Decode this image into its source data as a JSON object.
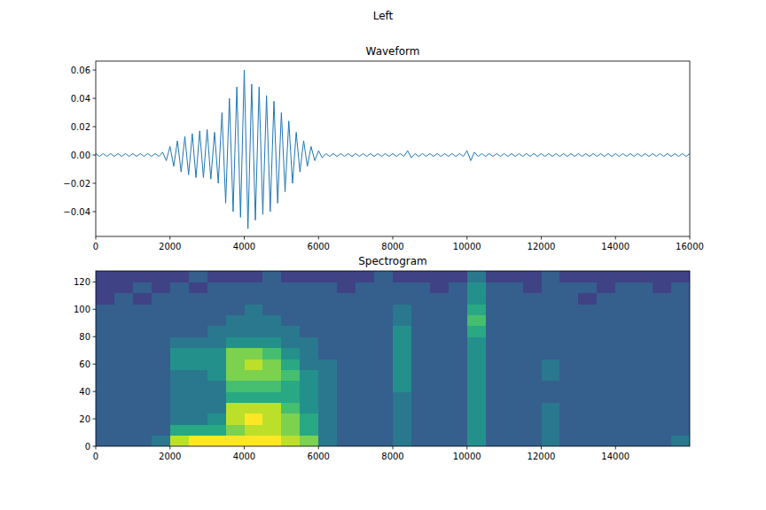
{
  "suptitle": "Left",
  "chart_data": [
    {
      "type": "line",
      "title": "Waveform",
      "color": "#1f77b4",
      "grid": false,
      "xlim": [
        0,
        16000
      ],
      "ylim": [
        -0.0575,
        0.0663
      ],
      "xticks": [
        0,
        2000,
        4000,
        6000,
        8000,
        10000,
        12000,
        14000,
        16000
      ],
      "yticks": [
        {
          "value": -0.04,
          "label": "−0.04"
        },
        {
          "value": -0.02,
          "label": "−0.02"
        },
        {
          "value": 0,
          "label": "0.00"
        },
        {
          "value": 0.02,
          "label": "0.02"
        },
        {
          "value": 0.04,
          "label": "0.04"
        },
        {
          "value": 0.06,
          "label": "0.06"
        }
      ],
      "x": [
        0,
        100,
        200,
        300,
        400,
        500,
        600,
        700,
        800,
        900,
        1000,
        1100,
        1200,
        1300,
        1400,
        1500,
        1600,
        1700,
        1800,
        1900,
        2000,
        2100,
        2200,
        2300,
        2400,
        2500,
        2600,
        2700,
        2800,
        2900,
        3000,
        3100,
        3200,
        3300,
        3400,
        3500,
        3600,
        3700,
        3800,
        3900,
        4000,
        4100,
        4200,
        4300,
        4400,
        4500,
        4600,
        4700,
        4800,
        4900,
        5000,
        5100,
        5200,
        5300,
        5400,
        5500,
        5600,
        5700,
        5800,
        5900,
        6000,
        6100,
        6200,
        6300,
        6400,
        6500,
        6600,
        6700,
        6800,
        6900,
        7000,
        7100,
        7200,
        7300,
        7400,
        7500,
        7600,
        7700,
        7800,
        7900,
        8000,
        8100,
        8200,
        8300,
        8400,
        8500,
        8600,
        8700,
        8800,
        8900,
        9000,
        9100,
        9200,
        9300,
        9400,
        9500,
        9600,
        9700,
        9800,
        9900,
        10000,
        10100,
        10200,
        10300,
        10400,
        10500,
        10600,
        10700,
        10800,
        10900,
        11000,
        11100,
        11200,
        11300,
        11400,
        11500,
        11600,
        11700,
        11800,
        11900,
        12000,
        12100,
        12200,
        12300,
        12400,
        12500,
        12600,
        12700,
        12800,
        12900,
        13000,
        13100,
        13200,
        13300,
        13400,
        13500,
        13600,
        13700,
        13800,
        13900,
        14000,
        14100,
        14200,
        14300,
        14400,
        14500,
        14600,
        14700,
        14800,
        14900,
        15000,
        15100,
        15200,
        15300,
        15400,
        15500,
        15600,
        15700,
        15800,
        15900,
        16000
      ],
      "values": [
        0.001,
        -0.001,
        0.001,
        -0.001,
        0.001,
        -0.001,
        0.001,
        -0.001,
        0.001,
        -0.001,
        0.001,
        -0.001,
        0.001,
        -0.001,
        0.001,
        -0.001,
        0.001,
        -0.001,
        0.002,
        -0.004,
        0.006,
        -0.008,
        0.01,
        -0.012,
        0.013,
        -0.014,
        0.015,
        -0.016,
        0.017,
        -0.016,
        0.018,
        -0.017,
        0.016,
        -0.02,
        0.03,
        -0.034,
        0.04,
        -0.04,
        0.048,
        -0.044,
        0.06,
        -0.052,
        0.05,
        -0.046,
        0.048,
        -0.042,
        0.042,
        -0.04,
        0.038,
        -0.034,
        0.03,
        -0.026,
        0.024,
        -0.02,
        0.016,
        -0.012,
        0.01,
        -0.008,
        0.006,
        -0.004,
        0.003,
        -0.002,
        0.001,
        -0.001,
        0.001,
        -0.001,
        0.001,
        -0.001,
        0.001,
        -0.001,
        0.001,
        -0.001,
        0.001,
        -0.001,
        0.001,
        -0.001,
        0.001,
        -0.001,
        0.001,
        -0.001,
        0.001,
        -0.001,
        0.001,
        -0.001,
        0.003,
        -0.002,
        0.001,
        -0.001,
        0.001,
        -0.001,
        0.001,
        -0.001,
        0.001,
        -0.001,
        0.001,
        -0.001,
        0.001,
        -0.001,
        0.001,
        -0.001,
        0.003,
        -0.004,
        0.002,
        -0.001,
        0.001,
        -0.001,
        0.001,
        -0.001,
        0.001,
        -0.001,
        0.001,
        -0.001,
        0.001,
        -0.001,
        0.001,
        -0.001,
        0.001,
        -0.001,
        0.001,
        -0.001,
        0.001,
        -0.001,
        0.001,
        -0.001,
        0.001,
        -0.001,
        0.001,
        -0.001,
        0.001,
        -0.001,
        0.001,
        -0.001,
        0.001,
        -0.001,
        0.001,
        -0.001,
        0.001,
        -0.001,
        0.001,
        -0.001,
        0.001,
        -0.001,
        0.001,
        -0.001,
        0.001,
        -0.001,
        0.001,
        -0.001,
        0.001,
        -0.001,
        0.001,
        -0.001,
        0.001,
        -0.001,
        0.001,
        -0.001,
        0.001,
        -0.001,
        0.001,
        -0.001,
        0.001
      ]
    },
    {
      "type": "heatmap",
      "title": "Spectrogram",
      "grid": false,
      "xlim": [
        0,
        16000
      ],
      "ylim": [
        0,
        128
      ],
      "zlim": [
        0,
        10
      ],
      "xticks": [
        0,
        2000,
        4000,
        6000,
        8000,
        10000,
        12000,
        14000
      ],
      "yticks": [
        0,
        20,
        40,
        60,
        80,
        100,
        120
      ],
      "x_edges": [
        0,
        500,
        1000,
        1500,
        2000,
        2500,
        3000,
        3500,
        4000,
        4500,
        5000,
        5500,
        6000,
        6500,
        7000,
        7500,
        8000,
        8500,
        9000,
        9500,
        10000,
        10500,
        11000,
        11500,
        12000,
        12500,
        13000,
        13500,
        14000,
        14500,
        15000,
        15500,
        16000
      ],
      "y_edges": [
        0,
        8,
        16,
        24,
        32,
        40,
        48,
        56,
        64,
        72,
        80,
        88,
        96,
        104,
        112,
        120,
        128
      ],
      "cells": [
        [
          3,
          3,
          3,
          4,
          9,
          10,
          10,
          10,
          10,
          10,
          9,
          8,
          4,
          3,
          3,
          3,
          4,
          3,
          3,
          3,
          5,
          3,
          3,
          3,
          4,
          3,
          3,
          3,
          3,
          3,
          3,
          4
        ],
        [
          3,
          3,
          3,
          3,
          6,
          6,
          6,
          8,
          9,
          9,
          8,
          6,
          4,
          3,
          3,
          3,
          4,
          3,
          3,
          3,
          5,
          3,
          3,
          3,
          4,
          3,
          3,
          3,
          3,
          3,
          3,
          3
        ],
        [
          3,
          3,
          3,
          3,
          4,
          4,
          5,
          9,
          10,
          9,
          8,
          6,
          4,
          3,
          3,
          3,
          4,
          3,
          3,
          3,
          5,
          3,
          3,
          3,
          4,
          3,
          3,
          3,
          3,
          3,
          3,
          3
        ],
        [
          3,
          3,
          3,
          3,
          4,
          4,
          4,
          9,
          9,
          9,
          7,
          5,
          4,
          3,
          3,
          3,
          4,
          3,
          3,
          3,
          5,
          3,
          3,
          3,
          4,
          3,
          3,
          3,
          3,
          3,
          3,
          3
        ],
        [
          3,
          3,
          3,
          3,
          4,
          4,
          4,
          6,
          6,
          6,
          6,
          5,
          4,
          3,
          3,
          3,
          4,
          3,
          3,
          3,
          5,
          3,
          3,
          3,
          3,
          3,
          3,
          3,
          3,
          3,
          3,
          3
        ],
        [
          3,
          3,
          3,
          3,
          4,
          4,
          4,
          7,
          7,
          7,
          6,
          5,
          4,
          3,
          3,
          3,
          5,
          3,
          3,
          3,
          5,
          3,
          3,
          3,
          3,
          3,
          3,
          3,
          3,
          3,
          3,
          3
        ],
        [
          3,
          3,
          3,
          3,
          4,
          4,
          5,
          8,
          8,
          8,
          7,
          5,
          4,
          3,
          3,
          3,
          5,
          3,
          3,
          3,
          5,
          3,
          3,
          3,
          4,
          3,
          3,
          3,
          3,
          3,
          3,
          3
        ],
        [
          3,
          3,
          3,
          3,
          5,
          5,
          5,
          8,
          9,
          8,
          6,
          4,
          4,
          3,
          3,
          3,
          5,
          3,
          3,
          3,
          5,
          3,
          3,
          3,
          4,
          3,
          3,
          3,
          3,
          3,
          3,
          3
        ],
        [
          3,
          3,
          3,
          3,
          5,
          5,
          5,
          8,
          8,
          7,
          5,
          4,
          3,
          3,
          3,
          3,
          5,
          3,
          3,
          3,
          5,
          3,
          3,
          3,
          3,
          3,
          3,
          3,
          3,
          3,
          3,
          3
        ],
        [
          3,
          3,
          3,
          3,
          4,
          4,
          4,
          5,
          5,
          5,
          4,
          4,
          3,
          3,
          3,
          3,
          5,
          3,
          3,
          3,
          5,
          3,
          3,
          3,
          3,
          3,
          3,
          3,
          3,
          3,
          3,
          3
        ],
        [
          3,
          3,
          3,
          3,
          3,
          3,
          4,
          4,
          4,
          4,
          4,
          3,
          3,
          3,
          3,
          3,
          5,
          3,
          3,
          3,
          6,
          3,
          3,
          3,
          3,
          3,
          3,
          3,
          3,
          3,
          3,
          3
        ],
        [
          3,
          3,
          3,
          3,
          3,
          3,
          3,
          4,
          4,
          4,
          3,
          3,
          3,
          3,
          3,
          3,
          4,
          3,
          3,
          3,
          7,
          3,
          3,
          3,
          3,
          3,
          3,
          3,
          3,
          3,
          3,
          3
        ],
        [
          3,
          3,
          3,
          3,
          3,
          3,
          3,
          3,
          4,
          3,
          3,
          3,
          3,
          3,
          3,
          3,
          4,
          3,
          3,
          3,
          6,
          3,
          3,
          3,
          3,
          3,
          3,
          3,
          3,
          3,
          3,
          3
        ],
        [
          2,
          3,
          2,
          3,
          3,
          3,
          3,
          3,
          3,
          3,
          3,
          3,
          3,
          3,
          3,
          3,
          3,
          3,
          3,
          3,
          5,
          3,
          3,
          3,
          3,
          3,
          2,
          3,
          3,
          3,
          3,
          3
        ],
        [
          2,
          2,
          3,
          2,
          3,
          2,
          3,
          3,
          3,
          3,
          3,
          3,
          3,
          2,
          3,
          3,
          3,
          3,
          2,
          3,
          5,
          3,
          3,
          2,
          3,
          3,
          3,
          2,
          3,
          3,
          2,
          3
        ],
        [
          2,
          2,
          2,
          2,
          2,
          3,
          2,
          2,
          2,
          3,
          2,
          2,
          2,
          2,
          2,
          3,
          2,
          2,
          2,
          2,
          4,
          2,
          2,
          2,
          3,
          2,
          2,
          2,
          2,
          2,
          2,
          2
        ]
      ]
    }
  ]
}
